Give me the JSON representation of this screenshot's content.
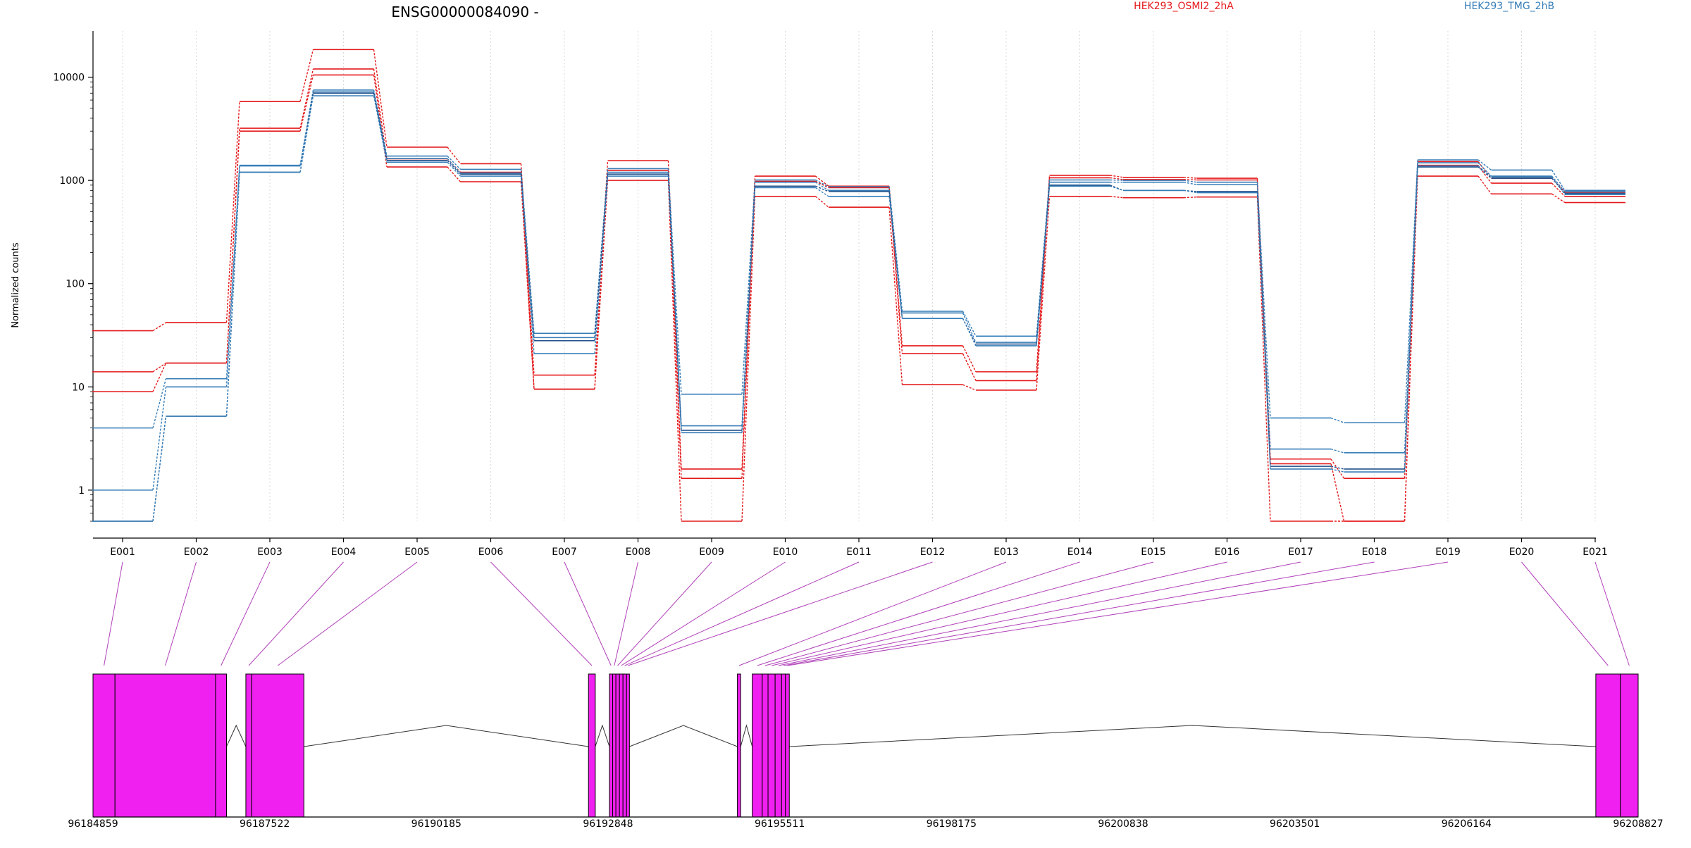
{
  "chart_data": {
    "type": "line",
    "title": "ENSG00000084090 -",
    "ylabel": "Normalized counts",
    "yscale": "log",
    "ylim": [
      0.5,
      28000
    ],
    "yticks": [
      1,
      10,
      100,
      1000,
      10000
    ],
    "ytick_labels": [
      "1",
      "10",
      "100",
      "1000",
      "10000"
    ],
    "grid": "vertical dotted lines at each exon",
    "legend": [
      {
        "name": "HEK293_OSMI2_2hA",
        "color": "#e41a1c",
        "placement": "top-center"
      },
      {
        "name": "HEK293_TMG_2hB",
        "color": "#377eb8",
        "placement": "top-right"
      }
    ],
    "categories": [
      "E001",
      "E002",
      "E003",
      "E004",
      "E005",
      "E006",
      "E007",
      "E008",
      "E009",
      "E010",
      "E011",
      "E012",
      "E013",
      "E014",
      "E015",
      "E016",
      "E017",
      "E018",
      "E019",
      "E020",
      "E021"
    ],
    "series": [
      {
        "color": "#e41a1c",
        "values": [
          35,
          42,
          5800,
          18500,
          2100,
          1450,
          13,
          1550,
          1.6,
          1100,
          880,
          25,
          14,
          1120,
          1070,
          1050,
          2,
          1.3,
          1520,
          1050,
          770
        ]
      },
      {
        "color": "#e41a1c",
        "values": [
          14,
          17,
          3200,
          12000,
          1620,
          1200,
          9.5,
          1250,
          1.3,
          980,
          850,
          21,
          11.5,
          1060,
          1020,
          1010,
          1.8,
          0.5,
          1400,
          940,
          700
        ]
      },
      {
        "color": "#e41a1c",
        "values": [
          9,
          17,
          3000,
          10500,
          1350,
          970,
          9.5,
          1000,
          0.5,
          700,
          550,
          10.5,
          9.3,
          700,
          680,
          690,
          0.5,
          0.5,
          1100,
          740,
          610
        ]
      },
      {
        "color": "#377eb8",
        "values": [
          4,
          12,
          1400,
          7500,
          1720,
          1280,
          33,
          1300,
          8.5,
          1010,
          870,
          54,
          31,
          1010,
          1000,
          960,
          5,
          4.5,
          1580,
          1260,
          800
        ]
      },
      {
        "color": "#377eb8",
        "values": [
          1,
          10,
          1380,
          7200,
          1630,
          1180,
          30,
          1200,
          4.2,
          960,
          800,
          52,
          27,
          960,
          960,
          910,
          2.5,
          2.3,
          1480,
          1100,
          780
        ]
      },
      {
        "color": "#1f4f8a",
        "values": [
          0.5,
          5.2,
          1200,
          7000,
          1560,
          1150,
          28,
          1150,
          3.8,
          880,
          780,
          46,
          26,
          900,
          800,
          780,
          1.7,
          1.6,
          1350,
          1050,
          750
        ]
      },
      {
        "color": "#377eb8",
        "values": [
          0.5,
          5.2,
          1200,
          6600,
          1500,
          1100,
          21,
          1100,
          3.6,
          850,
          700,
          46,
          25,
          880,
          800,
          760,
          1.6,
          1.5,
          1380,
          1080,
          730
        ]
      }
    ],
    "gene_model": {
      "xlim": [
        96184859,
        96208827
      ],
      "xticks": [
        96184859,
        96187522,
        96190185,
        96192848,
        96195511,
        96198175,
        96200838,
        96203501,
        96206164,
        96208827
      ],
      "xtick_labels": [
        "96184859",
        "96187522",
        "96190185",
        "96192848",
        "96195511",
        "96198175",
        "96200838",
        "96203501",
        "96206164",
        "96208827"
      ],
      "exon_color": "#f020f0",
      "connector_color": "#b040b8",
      "exons": [
        {
          "id": "E001",
          "start": 96184859,
          "end": 96185200
        },
        {
          "id": "E002",
          "start": 96185200,
          "end": 96186760
        },
        {
          "id": "E003",
          "start": 96186760,
          "end": 96186930
        },
        {
          "id": "E004",
          "start": 96187230,
          "end": 96187320
        },
        {
          "id": "E005",
          "start": 96187320,
          "end": 96188130
        },
        {
          "id": "E006",
          "start": 96192545,
          "end": 96192650
        },
        {
          "id": "E007",
          "start": 96192870,
          "end": 96192920
        },
        {
          "id": "E008",
          "start": 96192920,
          "end": 96192970
        },
        {
          "id": "E009",
          "start": 96192970,
          "end": 96193025
        },
        {
          "id": "E010",
          "start": 96193025,
          "end": 96193080
        },
        {
          "id": "E011",
          "start": 96193080,
          "end": 96193135
        },
        {
          "id": "E012",
          "start": 96193135,
          "end": 96193180
        },
        {
          "id": "E013",
          "start": 96194855,
          "end": 96194905
        },
        {
          "id": "E014",
          "start": 96195085,
          "end": 96195240
        },
        {
          "id": "E015",
          "start": 96195240,
          "end": 96195330
        },
        {
          "id": "E016",
          "start": 96195330,
          "end": 96195440
        },
        {
          "id": "E017",
          "start": 96195440,
          "end": 96195540
        },
        {
          "id": "E018",
          "start": 96195540,
          "end": 96195600
        },
        {
          "id": "E019",
          "start": 96195600,
          "end": 96195660
        },
        {
          "id": "E020",
          "start": 96208170,
          "end": 96208550
        },
        {
          "id": "E021",
          "start": 96208550,
          "end": 96208827
        }
      ],
      "introns": [
        {
          "start": 96186930,
          "end": 96187230
        },
        {
          "start": 96188130,
          "end": 96192545
        },
        {
          "start": 96192650,
          "end": 96192870
        },
        {
          "start": 96193180,
          "end": 96194855
        },
        {
          "start": 96194905,
          "end": 96195085
        },
        {
          "start": 96195660,
          "end": 96208170
        }
      ]
    }
  }
}
